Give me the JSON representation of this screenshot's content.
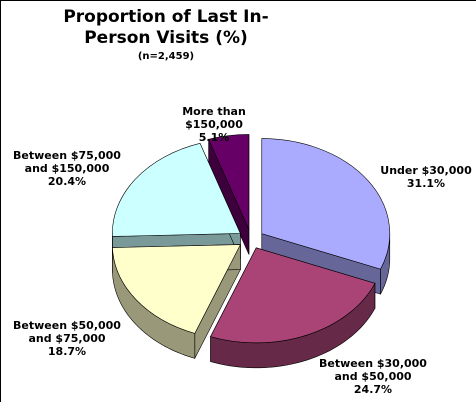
{
  "chart_data": {
    "type": "pie3d",
    "title": "Proportion of Last In-Person Visits (%)",
    "subtitle": "(n=2,459)",
    "categories": [
      "Under $30,000",
      "Between $30,000 and $50,000",
      "Between $50,000 and $75,000",
      "Between $75,000 and $150,000",
      "More than $150,000"
    ],
    "values": [
      31.1,
      24.7,
      18.7,
      20.4,
      5.1
    ],
    "value_labels": [
      "31.1%",
      "24.7%",
      "18.7%",
      "20.4%",
      "5.1%"
    ],
    "colors": [
      "#aaaaff",
      "#aa4477",
      "#ffffcc",
      "#ccffff",
      "#660066"
    ]
  }
}
